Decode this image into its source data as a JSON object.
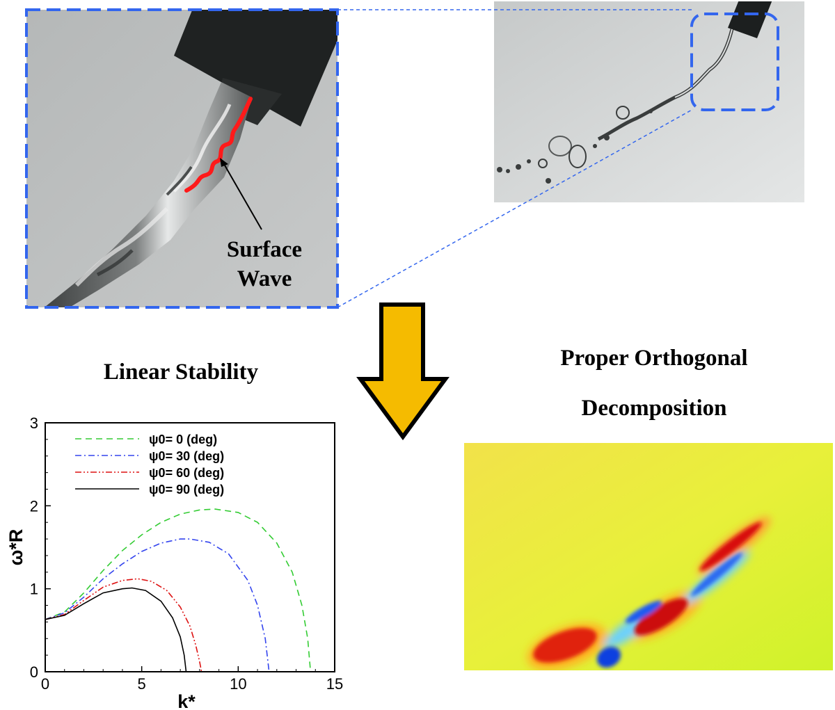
{
  "photo_left": {
    "annotation_line1": "Surface",
    "annotation_line2": "Wave"
  },
  "titles": {
    "linear_stability": "Linear Stability",
    "pod_line1": "Proper Orthogonal",
    "pod_line2": "Decomposition"
  },
  "colors": {
    "frame_dashed": "#3366ee",
    "surface_wave": "#ff1a1a",
    "arrow_fill": "#f5bb00"
  },
  "chart_data": {
    "type": "line",
    "xlabel": "k*",
    "ylabel": "ω*R",
    "xlim": [
      0,
      15
    ],
    "ylim": [
      0,
      3
    ],
    "xticks": [
      "0",
      "5",
      "10",
      "15"
    ],
    "yticks": [
      "0",
      "1",
      "2",
      "3"
    ],
    "legend_position": "top-left",
    "series": [
      {
        "name": "ψ0= 0 (deg)",
        "color": "#33cc33",
        "dash": "dashed",
        "x": [
          0,
          1,
          2,
          3,
          4,
          5,
          6,
          7,
          8,
          8.8,
          10,
          11,
          12,
          12.8,
          13.3,
          13.6,
          13.75
        ],
        "y": [
          0.63,
          0.72,
          0.95,
          1.22,
          1.46,
          1.65,
          1.8,
          1.9,
          1.95,
          1.96,
          1.92,
          1.8,
          1.55,
          1.2,
          0.8,
          0.4,
          0
        ]
      },
      {
        "name": "ψ0= 30 (deg)",
        "color": "#3344ee",
        "dash": "dashdot",
        "x": [
          0,
          1,
          2,
          3,
          4,
          5,
          6,
          7,
          7.5,
          8.5,
          9.5,
          10.5,
          11.0,
          11.4,
          11.6
        ],
        "y": [
          0.63,
          0.71,
          0.9,
          1.12,
          1.3,
          1.45,
          1.55,
          1.6,
          1.6,
          1.56,
          1.42,
          1.1,
          0.8,
          0.4,
          0
        ]
      },
      {
        "name": "ψ0= 60 (deg)",
        "color": "#dd1111",
        "dash": "dashdotdot",
        "x": [
          0,
          1,
          2,
          3,
          4,
          4.8,
          5.5,
          6.3,
          7.0,
          7.5,
          7.8,
          8.0,
          8.1
        ],
        "y": [
          0.63,
          0.69,
          0.86,
          1.02,
          1.1,
          1.12,
          1.09,
          0.98,
          0.78,
          0.55,
          0.32,
          0.12,
          0
        ]
      },
      {
        "name": "ψ0= 90 (deg)",
        "color": "#000000",
        "dash": "solid",
        "x": [
          0,
          1,
          2,
          3,
          4,
          4.5,
          5.2,
          6.0,
          6.6,
          7.0,
          7.2,
          7.3
        ],
        "y": [
          0.63,
          0.68,
          0.82,
          0.95,
          1.0,
          1.01,
          0.98,
          0.85,
          0.65,
          0.42,
          0.2,
          0
        ]
      }
    ]
  }
}
